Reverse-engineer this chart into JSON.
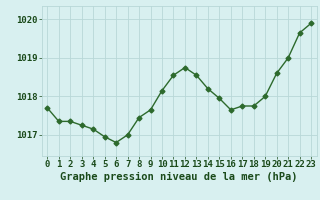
{
  "x": [
    0,
    1,
    2,
    3,
    4,
    5,
    6,
    7,
    8,
    9,
    10,
    11,
    12,
    13,
    14,
    15,
    16,
    17,
    18,
    19,
    20,
    21,
    22,
    23
  ],
  "y": [
    1017.7,
    1017.35,
    1017.35,
    1017.25,
    1017.15,
    1016.95,
    1016.8,
    1017.0,
    1017.45,
    1017.65,
    1018.15,
    1018.55,
    1018.75,
    1018.55,
    1018.2,
    1017.95,
    1017.65,
    1017.75,
    1017.75,
    1018.0,
    1018.6,
    1019.0,
    1019.65,
    1019.9
  ],
  "line_color": "#2d6a2d",
  "marker": "D",
  "markersize": 2.5,
  "linewidth": 1.0,
  "bg_color": "#d8f0f0",
  "grid_color": "#b8d8d8",
  "xlabel": "Graphe pression niveau de la mer (hPa)",
  "xlabel_fontsize": 7.5,
  "xlabel_color": "#1a4a1a",
  "tick_color": "#1a4a1a",
  "tick_fontsize": 6.5,
  "ytick_vals": [
    1017,
    1018,
    1019,
    1020
  ],
  "ytick_labels": [
    "1017",
    "1018",
    "1019",
    "1020"
  ],
  "ylim": [
    1016.45,
    1020.35
  ],
  "xlim": [
    -0.5,
    23.5
  ],
  "xtick_labels": [
    "0",
    "1",
    "2",
    "3",
    "4",
    "5",
    "6",
    "7",
    "8",
    "9",
    "10",
    "11",
    "12",
    "13",
    "14",
    "15",
    "16",
    "17",
    "18",
    "19",
    "20",
    "21",
    "22",
    "23"
  ]
}
